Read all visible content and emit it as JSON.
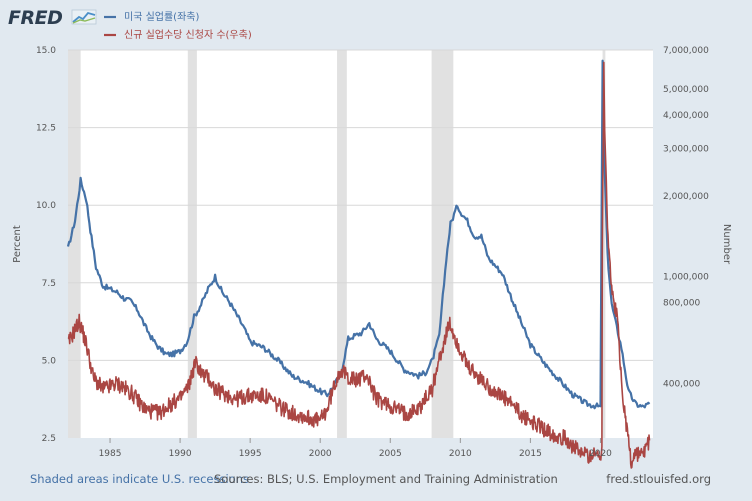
{
  "brand": {
    "logo_text": "FRED"
  },
  "footer": {
    "recession_note": "Shaded areas indicate U.S. recessions",
    "sources": "Sources: BLS; U.S. Employment and Training Administration",
    "site": "fred.stlouisfed.org"
  },
  "colors": {
    "unrate": "#4572a7",
    "claims": "#aa4643",
    "shade": "#e1e1e1",
    "grid": "#d8d8d8",
    "bg": "#e1e9f0"
  },
  "chart_data": {
    "type": "line",
    "title": "",
    "xlabel": "",
    "ylabel": "Percent",
    "ylabel_right": "Number",
    "xlim": [
      1982.0,
      2023.75
    ],
    "ylim": [
      2.5,
      15.0
    ],
    "y2lim_log": [
      250000,
      7000000
    ],
    "x_ticks": [
      "1985",
      "1990",
      "1995",
      "2000",
      "2005",
      "2010",
      "2015",
      "2020"
    ],
    "y_ticks": [
      "2.5",
      "5.0",
      "7.5",
      "10.0",
      "12.5",
      "15.0"
    ],
    "y2_ticks": [
      "400,000",
      "800,000",
      "1,000,000",
      "2,000,000",
      "3,000,000",
      "4,000,000",
      "5,000,000",
      "7,000,000"
    ],
    "recessions": [
      [
        1982.0,
        1982.9
      ],
      [
        1990.55,
        1991.2
      ],
      [
        2001.2,
        2001.9
      ],
      [
        2007.95,
        2009.5
      ],
      [
        2020.15,
        2020.35
      ]
    ],
    "series": [
      {
        "name": "미국 실업률(좌축)",
        "axis": "left",
        "x": [
          1982.0,
          1982.5,
          1982.9,
          1983.3,
          1983.6,
          1984.0,
          1984.5,
          1985.0,
          1985.5,
          1986.0,
          1986.5,
          1987.0,
          1987.5,
          1988.0,
          1988.5,
          1989.0,
          1989.5,
          1990.0,
          1990.5,
          1991.0,
          1991.5,
          1992.0,
          1992.5,
          1993.0,
          1993.5,
          1994.0,
          1994.5,
          1995.0,
          1996.0,
          1997.0,
          1998.0,
          1999.0,
          2000.0,
          2000.5,
          2001.0,
          2001.5,
          2002.0,
          2002.5,
          2003.0,
          2003.5,
          2004.0,
          2004.5,
          2005.0,
          2006.0,
          2007.0,
          2007.5,
          2008.0,
          2008.5,
          2009.0,
          2009.3,
          2009.8,
          2010.0,
          2010.5,
          2011.0,
          2011.5,
          2012.0,
          2013.0,
          2014.0,
          2015.0,
          2016.0,
          2017.0,
          2018.0,
          2019.0,
          2020.0,
          2020.15,
          2020.3,
          2020.5,
          2020.8,
          2021.0,
          2021.5,
          2022.0,
          2022.5,
          2023.0,
          2023.5
        ],
        "values": [
          8.6,
          9.5,
          10.8,
          10.2,
          9.2,
          8.0,
          7.4,
          7.3,
          7.2,
          7.0,
          6.9,
          6.6,
          6.1,
          5.7,
          5.4,
          5.2,
          5.2,
          5.3,
          5.6,
          6.4,
          6.8,
          7.3,
          7.7,
          7.2,
          6.9,
          6.5,
          6.1,
          5.6,
          5.4,
          5.0,
          4.5,
          4.3,
          4.0,
          3.9,
          4.2,
          4.6,
          5.7,
          5.8,
          5.9,
          6.2,
          5.7,
          5.5,
          5.3,
          4.7,
          4.5,
          4.6,
          5.0,
          5.8,
          8.3,
          9.4,
          10.0,
          9.8,
          9.5,
          9.0,
          9.0,
          8.3,
          7.8,
          6.6,
          5.5,
          4.9,
          4.4,
          3.9,
          3.6,
          3.5,
          14.7,
          11.1,
          8.4,
          6.8,
          6.4,
          5.4,
          4.0,
          3.6,
          3.5,
          3.6
        ]
      },
      {
        "name": "신규 실업수당 신청자 수(우축)",
        "axis": "right",
        "x": [
          1982.0,
          1982.4,
          1982.8,
          1983.3,
          1983.8,
          1984.5,
          1985.5,
          1986.5,
          1987.5,
          1988.5,
          1989.5,
          1990.0,
          1990.6,
          1991.1,
          1991.6,
          1992.0,
          1992.5,
          1993.0,
          1994.0,
          1995.0,
          1996.0,
          1997.0,
          1998.0,
          1999.0,
          2000.0,
          2000.5,
          2001.0,
          2001.4,
          2001.8,
          2002.5,
          2003.3,
          2004.0,
          2005.0,
          2006.0,
          2007.0,
          2008.0,
          2008.5,
          2009.0,
          2009.25,
          2009.8,
          2010.5,
          2011.5,
          2012.5,
          2013.5,
          2014.5,
          2015.5,
          2016.5,
          2017.5,
          2018.5,
          2019.5,
          2020.1,
          2020.2,
          2020.24,
          2020.3,
          2020.5,
          2020.8,
          2021.0,
          2021.15,
          2021.5,
          2021.8,
          2022.2,
          2022.5,
          2023.0,
          2023.5
        ],
        "values": [
          560000,
          620000,
          680000,
          560000,
          420000,
          380000,
          400000,
          370000,
          320000,
          310000,
          340000,
          350000,
          390000,
          480000,
          430000,
          420000,
          380000,
          370000,
          350000,
          360000,
          360000,
          330000,
          310000,
          300000,
          290000,
          320000,
          390000,
          450000,
          430000,
          410000,
          430000,
          350000,
          330000,
          310000,
          320000,
          380000,
          490000,
          610000,
          660000,
          560000,
          460000,
          410000,
          370000,
          340000,
          300000,
          280000,
          260000,
          250000,
          220000,
          215000,
          220000,
          3300000,
          6600000,
          3500000,
          1500000,
          870000,
          780000,
          740000,
          400000,
          290000,
          200000,
          220000,
          215000,
          245000
        ]
      }
    ]
  }
}
